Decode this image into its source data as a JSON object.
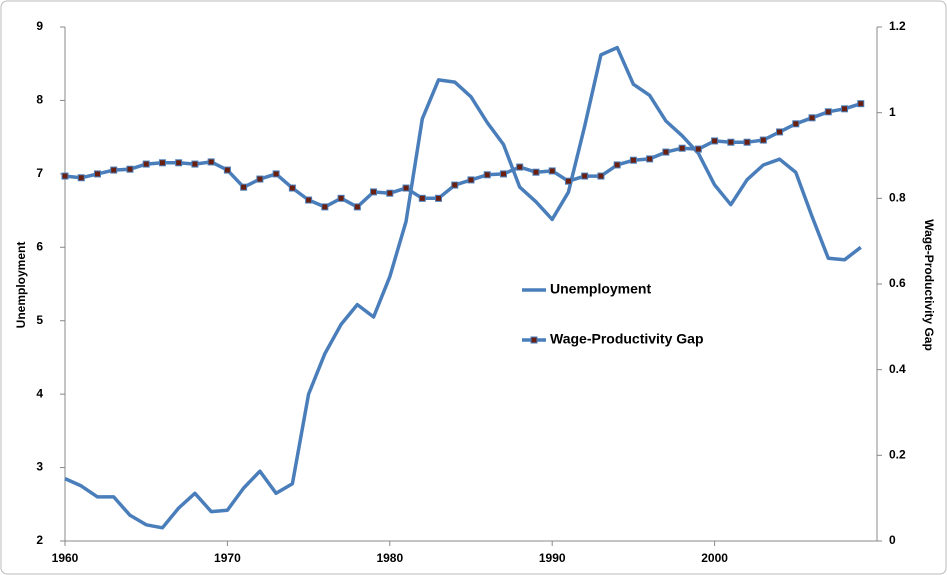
{
  "chart_data": {
    "type": "line",
    "x_label": "Unemployment",
    "y2_label": "Wage-Productivity Gap",
    "x": [
      1960,
      1961,
      1962,
      1963,
      1964,
      1965,
      1966,
      1967,
      1968,
      1969,
      1970,
      1971,
      1972,
      1973,
      1974,
      1975,
      1976,
      1977,
      1978,
      1979,
      1980,
      1981,
      1982,
      1983,
      1984,
      1985,
      1986,
      1987,
      1988,
      1989,
      1990,
      1991,
      1992,
      1993,
      1994,
      1995,
      1996,
      1997,
      1998,
      1999,
      2000,
      2001,
      2002,
      2003,
      2004,
      2005,
      2006,
      2007,
      2008,
      2009
    ],
    "series": [
      {
        "name": "Unemployment",
        "color": "#4a7ebb",
        "axis": "y",
        "values": [
          2.85,
          2.75,
          2.6,
          2.6,
          2.35,
          2.22,
          2.18,
          2.45,
          2.65,
          2.4,
          2.42,
          2.72,
          2.95,
          2.65,
          2.78,
          4.0,
          4.55,
          4.95,
          5.22,
          5.05,
          5.6,
          6.35,
          7.75,
          8.28,
          8.25,
          8.05,
          7.7,
          7.4,
          6.82,
          6.62,
          6.38,
          6.75,
          7.65,
          8.62,
          8.72,
          8.22,
          8.07,
          7.72,
          7.52,
          7.28,
          6.85,
          6.58,
          6.92,
          7.12,
          7.2,
          7.02,
          6.42,
          5.85,
          5.83,
          6.0
        ]
      },
      {
        "name": "Wage-Productivity Gap",
        "color": "#4a7ebb",
        "marker_color": "#6b1f0e",
        "axis": "y2",
        "values": [
          0.852,
          0.848,
          0.857,
          0.866,
          0.868,
          0.88,
          0.883,
          0.883,
          0.88,
          0.885,
          0.866,
          0.826,
          0.845,
          0.857,
          0.824,
          0.796,
          0.78,
          0.8,
          0.78,
          0.815,
          0.812,
          0.824,
          0.8,
          0.8,
          0.831,
          0.843,
          0.855,
          0.857,
          0.873,
          0.861,
          0.864,
          0.84,
          0.852,
          0.852,
          0.878,
          0.889,
          0.892,
          0.908,
          0.917,
          0.915,
          0.934,
          0.931,
          0.931,
          0.936,
          0.955,
          0.974,
          0.988,
          1.002,
          1.009,
          1.021
        ]
      }
    ],
    "xlim": [
      1960,
      2010
    ],
    "xticks": [
      1960,
      1970,
      1980,
      1990,
      2000
    ],
    "ylim": [
      2,
      9
    ],
    "yticks": [
      2,
      3,
      4,
      5,
      6,
      7,
      8,
      9
    ],
    "y2lim": [
      0,
      1.2
    ],
    "y2ticks": [
      0,
      0.2,
      0.4,
      0.6,
      0.8,
      1,
      1.2
    ],
    "grid": false,
    "legend": "center"
  }
}
